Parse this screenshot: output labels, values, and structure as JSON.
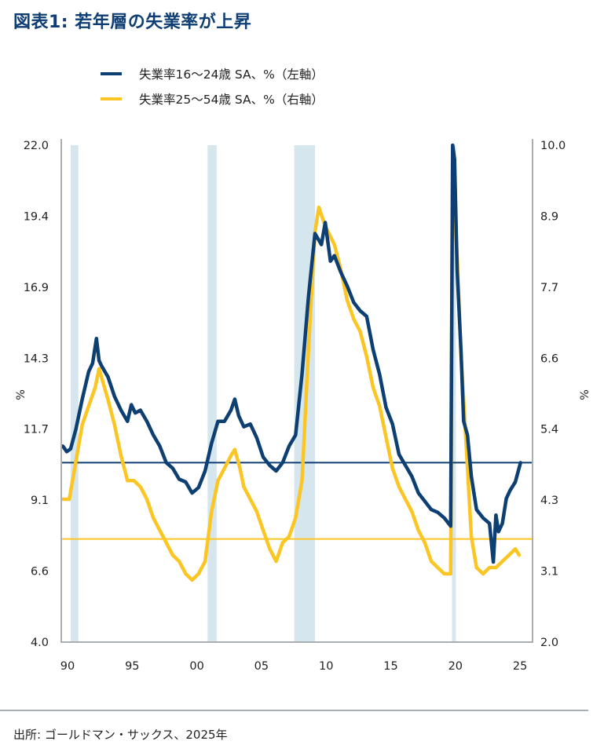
{
  "title": "図表1: 若年層の失業率が上昇",
  "source": "出所: ゴールドマン・サックス、2025年",
  "colors": {
    "youth": "#0d3f73",
    "prime": "#fbc623",
    "recession": "#d6e6ee",
    "axis": "#a9aeb3",
    "title": "#0f3e74"
  },
  "chart_data": {
    "type": "line",
    "title": "図表1: 若年層の失業率が上昇",
    "xlabel": "",
    "ylabel_left": "%",
    "ylabel_right": "%",
    "x_ticks": [
      "90",
      "95",
      "00",
      "05",
      "10",
      "15",
      "20",
      "25"
    ],
    "x_tick_years": [
      1990,
      1995,
      2000,
      2005,
      2010,
      2015,
      2020,
      2025
    ],
    "xlim": [
      1989.5,
      2025.7
    ],
    "ylim_left": [
      4.0,
      22.0
    ],
    "yticks_left": [
      "4.0",
      "6.6",
      "9.1",
      "11.7",
      "14.3",
      "16.9",
      "19.4",
      "22.0"
    ],
    "ylim_right": [
      2.0,
      10.0
    ],
    "yticks_right": [
      "2.0",
      "3.1",
      "4.3",
      "5.4",
      "6.6",
      "7.7",
      "8.9",
      "10.0"
    ],
    "grid": false,
    "legend_position": "top-left",
    "recessions": [
      [
        1990.6,
        1991.2
      ],
      [
        2001.2,
        2001.9
      ],
      [
        2007.9,
        2009.5
      ],
      [
        2020.1,
        2020.4
      ]
    ],
    "reference_lines": [
      {
        "series": "失業率16～24歳 SA、%（左軸）",
        "axis": "left",
        "value": 10.5
      },
      {
        "series": "失業率25～54歳 SA、%（右軸）",
        "axis": "right",
        "value": 3.66
      }
    ],
    "series": [
      {
        "name": "失業率16～24歳 SA、%（左軸）",
        "axis": "left",
        "color": "#0d3f73",
        "x": [
          1990.0,
          1990.3,
          1990.6,
          1991.0,
          1991.5,
          1992.0,
          1992.3,
          1992.6,
          1992.8,
          1993.0,
          1993.5,
          1994.0,
          1994.5,
          1995.0,
          1995.3,
          1995.6,
          1996.0,
          1996.5,
          1997.0,
          1997.5,
          1998.0,
          1998.5,
          1999.0,
          1999.5,
          2000.0,
          2000.5,
          2001.0,
          2001.5,
          2002.0,
          2002.5,
          2003.0,
          2003.3,
          2003.6,
          2004.0,
          2004.5,
          2005.0,
          2005.5,
          2006.0,
          2006.5,
          2007.0,
          2007.5,
          2008.0,
          2008.5,
          2009.0,
          2009.5,
          2010.0,
          2010.3,
          2010.7,
          2011.0,
          2011.5,
          2012.0,
          2012.5,
          2013.0,
          2013.5,
          2014.0,
          2014.5,
          2015.0,
          2015.5,
          2016.0,
          2016.5,
          2017.0,
          2017.5,
          2018.0,
          2018.5,
          2019.0,
          2019.5,
          2020.0,
          2020.15,
          2020.3,
          2020.5,
          2020.8,
          2021.0,
          2021.3,
          2021.6,
          2022.0,
          2022.5,
          2023.0,
          2023.3,
          2023.5,
          2023.7,
          2024.0,
          2024.3,
          2024.6,
          2025.0,
          2025.4
        ],
        "values": [
          11.1,
          10.9,
          11.0,
          11.7,
          12.8,
          13.8,
          14.1,
          15.0,
          14.2,
          14.0,
          13.6,
          12.9,
          12.4,
          12.0,
          12.6,
          12.3,
          12.4,
          12.0,
          11.5,
          11.1,
          10.5,
          10.3,
          9.9,
          9.8,
          9.4,
          9.6,
          10.2,
          11.2,
          12.0,
          12.0,
          12.4,
          12.8,
          12.2,
          11.8,
          11.9,
          11.4,
          10.7,
          10.4,
          10.2,
          10.5,
          11.1,
          11.5,
          13.7,
          16.5,
          18.8,
          18.4,
          19.2,
          17.8,
          18.0,
          17.4,
          16.9,
          16.3,
          16.0,
          15.8,
          14.6,
          13.7,
          12.5,
          11.9,
          10.8,
          10.4,
          10.0,
          9.4,
          9.1,
          8.8,
          8.7,
          8.5,
          8.2,
          22.0,
          21.5,
          17.5,
          14.5,
          12.0,
          11.5,
          10.0,
          8.8,
          8.5,
          8.3,
          6.9,
          8.6,
          8.0,
          8.3,
          9.2,
          9.5,
          9.8,
          10.5
        ]
      },
      {
        "name": "失業率25～54歳 SA、%（右軸）",
        "axis": "right",
        "color": "#fbc623",
        "x": [
          1990.0,
          1990.5,
          1991.0,
          1991.5,
          1992.0,
          1992.5,
          1992.8,
          1993.5,
          1994.0,
          1994.5,
          1995.0,
          1995.5,
          1996.0,
          1996.5,
          1997.0,
          1997.5,
          1998.0,
          1998.5,
          1999.0,
          1999.5,
          2000.0,
          2000.5,
          2001.0,
          2001.5,
          2002.0,
          2002.5,
          2003.0,
          2003.3,
          2003.7,
          2004.0,
          2004.5,
          2005.0,
          2005.5,
          2006.0,
          2006.5,
          2007.0,
          2007.5,
          2008.0,
          2008.5,
          2009.0,
          2009.5,
          2009.8,
          2010.3,
          2011.0,
          2011.5,
          2012.0,
          2012.5,
          2013.0,
          2013.5,
          2014.0,
          2014.5,
          2015.0,
          2015.5,
          2016.0,
          2016.5,
          2017.0,
          2017.5,
          2018.0,
          2018.5,
          2019.0,
          2019.5,
          2020.0,
          2020.15,
          2020.3,
          2020.5,
          2020.8,
          2021.0,
          2021.3,
          2021.6,
          2022.0,
          2022.5,
          2023.0,
          2023.5,
          2024.0,
          2024.5,
          2025.0,
          2025.3
        ],
        "values": [
          4.3,
          4.3,
          4.9,
          5.5,
          5.8,
          6.1,
          6.4,
          5.9,
          5.5,
          5.0,
          4.6,
          4.6,
          4.5,
          4.3,
          4.0,
          3.8,
          3.6,
          3.4,
          3.3,
          3.1,
          3.0,
          3.1,
          3.3,
          4.1,
          4.6,
          4.8,
          5.0,
          5.1,
          4.8,
          4.5,
          4.3,
          4.1,
          3.8,
          3.5,
          3.3,
          3.6,
          3.7,
          4.0,
          4.6,
          6.7,
          8.6,
          9.0,
          8.7,
          8.4,
          8.0,
          7.5,
          7.2,
          7.0,
          6.6,
          6.1,
          5.8,
          5.3,
          4.8,
          4.5,
          4.3,
          4.1,
          3.8,
          3.6,
          3.3,
          3.2,
          3.1,
          3.1,
          9.9,
          9.0,
          8.2,
          6.6,
          5.9,
          4.8,
          3.7,
          3.2,
          3.1,
          3.2,
          3.2,
          3.3,
          3.4,
          3.5,
          3.4
        ]
      }
    ]
  }
}
